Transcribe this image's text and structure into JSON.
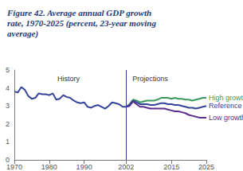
{
  "chart_data": {
    "type": "line",
    "title": "Figure 42. Average annual GDP growth rate, 1970-2025 (percent, 23-year moving average)",
    "annotations": [
      "Projections"
    ],
    "divider_x": 2002,
    "x": [
      1970,
      1971,
      1972,
      1973,
      1974,
      1975,
      1976,
      1977,
      1978,
      1979,
      1980,
      1981,
      1982,
      1983,
      1984,
      1985,
      1986,
      1987,
      1988,
      1989,
      1990,
      1991,
      1992,
      1993,
      1994,
      1995,
      1996,
      1997,
      1998,
      1999,
      2000,
      2001,
      2002,
      2003,
      2004,
      2005,
      2006,
      2007,
      2008,
      2009,
      2010,
      2011,
      2012,
      2013,
      2014,
      2015,
      2016,
      2017,
      2018,
      2019,
      2020,
      2021,
      2022,
      2023,
      2024,
      2025
    ],
    "series": [
      {
        "name": "History",
        "color": "#34439a",
        "values": [
          3.8,
          3.75,
          4.05,
          3.9,
          3.55,
          3.4,
          3.45,
          3.7,
          3.65,
          3.65,
          3.6,
          3.7,
          3.35,
          3.4,
          3.6,
          3.5,
          3.45,
          3.3,
          3.2,
          3.15,
          3.2,
          2.95,
          2.9,
          3.0,
          3.05,
          2.95,
          2.85,
          3.0,
          3.2,
          3.15,
          3.1,
          2.95,
          2.95,
          null,
          null,
          null,
          null,
          null,
          null,
          null,
          null,
          null,
          null,
          null,
          null,
          null,
          null,
          null,
          null,
          null,
          null,
          null,
          null,
          null,
          null,
          null
        ]
      },
      {
        "name": "High growth",
        "color": "#3a9a5a",
        "values": [
          null,
          null,
          null,
          null,
          null,
          null,
          null,
          null,
          null,
          null,
          null,
          null,
          null,
          null,
          null,
          null,
          null,
          null,
          null,
          null,
          null,
          null,
          null,
          null,
          null,
          null,
          null,
          null,
          null,
          null,
          null,
          null,
          2.95,
          3.1,
          3.35,
          3.3,
          3.2,
          3.25,
          3.3,
          3.3,
          3.3,
          3.35,
          3.45,
          3.45,
          3.45,
          3.4,
          3.45,
          3.4,
          3.4,
          3.35,
          3.35,
          3.3,
          3.35,
          3.4,
          3.45,
          3.45
        ]
      },
      {
        "name": "Reference",
        "color": "#34439a",
        "values": [
          null,
          null,
          null,
          null,
          null,
          null,
          null,
          null,
          null,
          null,
          null,
          null,
          null,
          null,
          null,
          null,
          null,
          null,
          null,
          null,
          null,
          null,
          null,
          null,
          null,
          null,
          null,
          null,
          null,
          null,
          null,
          null,
          2.95,
          3.05,
          3.3,
          3.2,
          3.1,
          3.1,
          3.1,
          3.05,
          3.05,
          3.1,
          3.15,
          3.15,
          3.1,
          3.1,
          3.05,
          3.05,
          3.0,
          2.95,
          2.9,
          2.9,
          2.85,
          2.9,
          2.95,
          3.0
        ]
      },
      {
        "name": "Low growth",
        "color": "#5b2d8e",
        "values": [
          null,
          null,
          null,
          null,
          null,
          null,
          null,
          null,
          null,
          null,
          null,
          null,
          null,
          null,
          null,
          null,
          null,
          null,
          null,
          null,
          null,
          null,
          null,
          null,
          null,
          null,
          null,
          null,
          null,
          null,
          null,
          null,
          2.95,
          3.0,
          3.25,
          3.1,
          2.95,
          2.95,
          2.9,
          2.85,
          2.85,
          2.85,
          2.85,
          2.85,
          2.8,
          2.75,
          2.7,
          2.7,
          2.65,
          2.6,
          2.5,
          2.45,
          2.4,
          2.35,
          2.35,
          2.35
        ]
      }
    ],
    "xlim": [
      1970,
      2025
    ],
    "xticks": [
      1970,
      1980,
      1990,
      2002,
      2015,
      2025
    ],
    "ylim": [
      0,
      5
    ],
    "yticks": [
      0,
      1,
      2,
      3,
      4,
      5
    ],
    "grid": false
  }
}
